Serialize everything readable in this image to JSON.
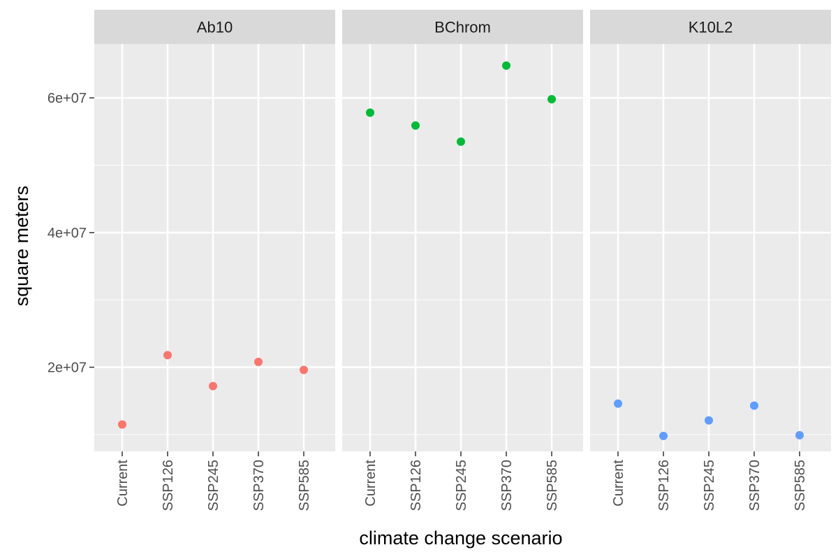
{
  "chart_data": {
    "type": "scatter",
    "xlabel": "climate change scenario",
    "ylabel": "square meters",
    "categories": [
      "Current",
      "SSP126",
      "SSP245",
      "SSP370",
      "SSP585"
    ],
    "ylim": [
      7500000,
      68000000
    ],
    "yticks": [
      {
        "value": 20000000,
        "label": "2e+07"
      },
      {
        "value": 40000000,
        "label": "4e+07"
      },
      {
        "value": 60000000,
        "label": "6e+07"
      }
    ],
    "grid": true,
    "legend": "none",
    "panel_background": "#ebebeb",
    "strip_background": "#d9d9d9",
    "panels": [
      {
        "name": "Ab10",
        "color": "#f8766d",
        "values": [
          11500000,
          21800000,
          17200000,
          20800000,
          19600000
        ]
      },
      {
        "name": "BChrom",
        "color": "#00ba38",
        "values": [
          57800000,
          55900000,
          53500000,
          64800000,
          59800000
        ]
      },
      {
        "name": "K10L2",
        "color": "#619cff",
        "values": [
          14600000,
          9800000,
          12100000,
          14300000,
          9900000
        ]
      }
    ]
  }
}
